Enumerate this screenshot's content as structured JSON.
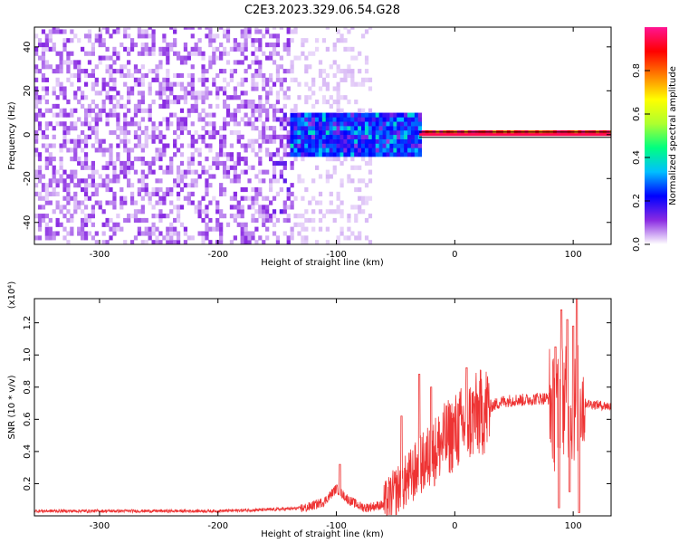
{
  "title": "C2E3.2023.329.06.54.G28",
  "chart_data": [
    {
      "type": "heatmap",
      "xlabel": "Height of straight line (km)",
      "ylabel": "Frequency (Hz)",
      "xlim": [
        -355,
        132
      ],
      "ylim": [
        -50,
        49
      ],
      "x_ticks": [
        -300,
        -200,
        -100,
        0,
        100
      ],
      "x_tick_labels": [
        "-300",
        "-200",
        "-100",
        "0",
        "100"
      ],
      "y_ticks": [
        -40,
        -20,
        0,
        20,
        40
      ],
      "y_tick_labels": [
        "-40",
        "-20",
        "0",
        "20",
        "40"
      ],
      "colorbar": {
        "label": "Normalized spectral amplitude",
        "range": [
          0,
          1
        ],
        "ticks": [
          0.0,
          0.2,
          0.4,
          0.6,
          0.8
        ],
        "tick_labels": [
          "0.0",
          "0.2",
          "0.4",
          "0.6",
          "0.8"
        ],
        "colors": [
          "#ffffff",
          "#8a2be2",
          "#0000ff",
          "#00bfff",
          "#00ff80",
          "#adff2f",
          "#ffff00",
          "#ff8000",
          "#ff0000",
          "#ff1493"
        ]
      },
      "regions": [
        {
          "x_range": [
            -355,
            -140
          ],
          "freq_range": [
            -50,
            49
          ],
          "level": 0.15,
          "description": "broadband noise"
        },
        {
          "x_range": [
            -140,
            -70
          ],
          "freq_range": [
            -50,
            49
          ],
          "level": 0.05,
          "description": "sparse noise"
        },
        {
          "x_range": [
            -140,
            -30
          ],
          "freq_range": [
            -10,
            10
          ],
          "level": 0.35,
          "description": "signal spread"
        },
        {
          "x_range": [
            -30,
            132
          ],
          "freq_range": [
            -1,
            1
          ],
          "level": 0.95,
          "description": "carrier line"
        }
      ],
      "vertical_streak": {
        "x_range": [
          -155,
          -138
        ],
        "freq_range": [
          -45,
          10
        ]
      },
      "grid": false
    },
    {
      "type": "line",
      "xlabel": "Height of straight line (km)",
      "ylabel": "SNR (10 * v/v)",
      "y_scale_label": "(x10⁴)",
      "xlim": [
        -355,
        132
      ],
      "ylim": [
        0,
        1.35
      ],
      "x_ticks": [
        -300,
        -200,
        -100,
        0,
        100
      ],
      "x_tick_labels": [
        "-300",
        "-200",
        "-100",
        "0",
        "100"
      ],
      "y_ticks": [
        0.2,
        0.4,
        0.6,
        0.8,
        1.0,
        1.2
      ],
      "y_tick_labels": [
        "0.2",
        "0.4",
        "0.6",
        "0.8",
        "1.0",
        "1.2"
      ],
      "color": "#ee3333",
      "x": [
        -355,
        -300,
        -250,
        -200,
        -150,
        -125,
        -110,
        -100,
        -90,
        -80,
        -75,
        -60,
        -50,
        -40,
        -30,
        -20,
        -10,
        0,
        10,
        20,
        30,
        40,
        50,
        60,
        70,
        80,
        85,
        90,
        95,
        100,
        105,
        110,
        120,
        132
      ],
      "values": [
        0.03,
        0.03,
        0.03,
        0.03,
        0.04,
        0.05,
        0.09,
        0.17,
        0.1,
        0.06,
        0.05,
        0.07,
        0.15,
        0.22,
        0.3,
        0.38,
        0.46,
        0.52,
        0.58,
        0.63,
        0.68,
        0.71,
        0.72,
        0.72,
        0.73,
        0.73,
        0.6,
        0.75,
        0.7,
        0.65,
        0.75,
        0.7,
        0.69,
        0.68
      ],
      "spikes": [
        {
          "x": -97,
          "value": 0.32
        },
        {
          "x": -45,
          "value": 0.62
        },
        {
          "x": -30,
          "value": 0.88
        },
        {
          "x": -20,
          "value": 0.8
        },
        {
          "x": 10,
          "value": 0.92
        },
        {
          "x": 85,
          "value": 1.05
        },
        {
          "x": 90,
          "value": 1.28
        },
        {
          "x": 95,
          "value": 1.22
        },
        {
          "x": 100,
          "value": 1.18
        },
        {
          "x": 103,
          "value": 1.35
        }
      ],
      "dips": [
        {
          "x": 88,
          "value": 0.05
        },
        {
          "x": 97,
          "value": 0.15
        },
        {
          "x": 105,
          "value": 0.02
        }
      ],
      "grid": false
    }
  ]
}
